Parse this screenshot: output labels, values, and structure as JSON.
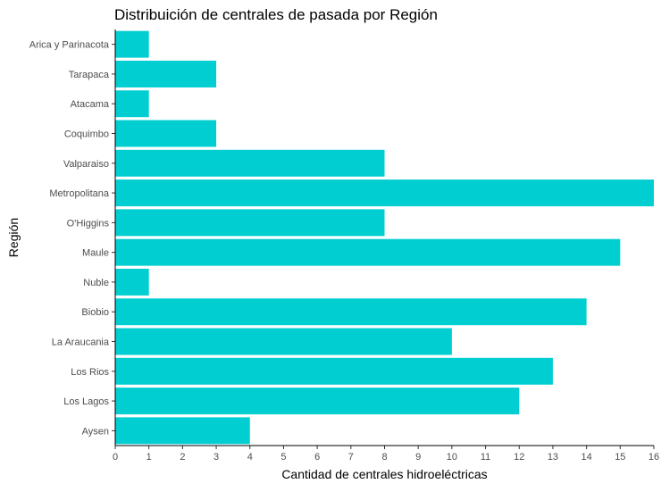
{
  "chart_data": {
    "type": "bar",
    "orientation": "horizontal",
    "title": "Distribuición de centrales de pasada por Región",
    "xlabel": "Cantidad de centrales hidroeléctricas",
    "ylabel": "Región",
    "categories": [
      "Arica y Parinacota",
      "Tarapaca",
      "Atacama",
      "Coquimbo",
      "Valparaiso",
      "Metropolitana",
      "O'Higgins",
      "Maule",
      "Nuble",
      "Biobio",
      "La Araucania",
      "Los Rios",
      "Los Lagos",
      "Aysen"
    ],
    "values": [
      1,
      3,
      1,
      3,
      8,
      16,
      8,
      15,
      1,
      14,
      10,
      13,
      12,
      4
    ],
    "xlim": [
      0,
      16
    ],
    "xticks": [
      0,
      1,
      2,
      3,
      4,
      5,
      6,
      7,
      8,
      9,
      10,
      11,
      12,
      13,
      14,
      15,
      16
    ],
    "grid": false,
    "bar_color": "#00CED1"
  }
}
